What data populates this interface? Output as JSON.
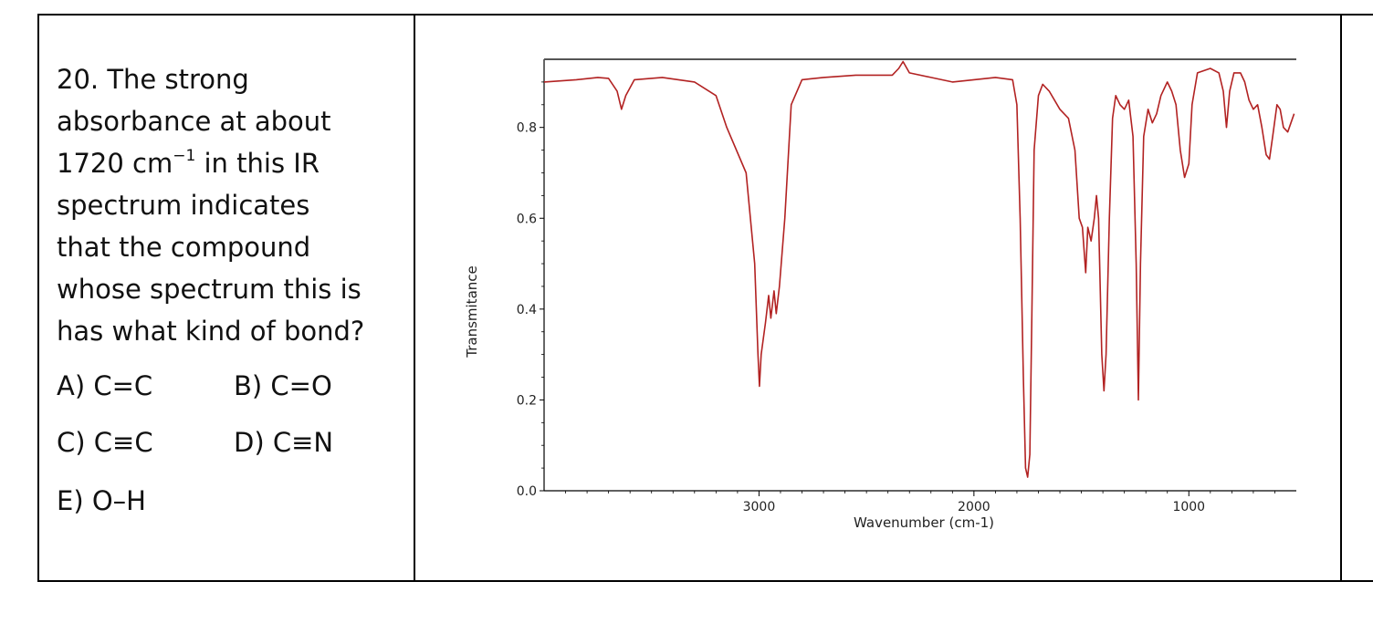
{
  "question": {
    "number": "20.",
    "stem_lines": [
      "20. The strong",
      "absorbance at about",
      "1720 cm",
      "spectrum indicates",
      "that the compound",
      "whose spectrum this is",
      "has what kind of bond?"
    ],
    "unit_superscript": "−1",
    "line3_suffix": " in this IR",
    "options": [
      {
        "label": "A) C=C"
      },
      {
        "label": "B) C=O"
      },
      {
        "label": "C) C≡C"
      },
      {
        "label": "D) C≡N"
      },
      {
        "label": "E) O–H"
      }
    ]
  },
  "chart_data": {
    "type": "line",
    "title": "",
    "xlabel": "Wavenumber (cm-1)",
    "ylabel": "Transmitance",
    "xlim": [
      4000,
      500
    ],
    "ylim": [
      0,
      0.95
    ],
    "x_ticks": [
      3000,
      2000,
      1000
    ],
    "y_ticks": [
      0.0,
      0.2,
      0.4,
      0.6,
      0.8
    ],
    "y_tick_labels": [
      "0.0",
      "0.2",
      "0.4",
      "0.6",
      "0.8"
    ],
    "grid": false,
    "series": [
      {
        "color": "#b22222",
        "points": [
          [
            4000,
            0.9
          ],
          [
            3850,
            0.905
          ],
          [
            3750,
            0.91
          ],
          [
            3700,
            0.908
          ],
          [
            3660,
            0.88
          ],
          [
            3640,
            0.84
          ],
          [
            3620,
            0.87
          ],
          [
            3580,
            0.905
          ],
          [
            3450,
            0.91
          ],
          [
            3300,
            0.9
          ],
          [
            3200,
            0.87
          ],
          [
            3150,
            0.8
          ],
          [
            3060,
            0.7
          ],
          [
            3020,
            0.5
          ],
          [
            3005,
            0.3
          ],
          [
            2998,
            0.23
          ],
          [
            2990,
            0.3
          ],
          [
            2970,
            0.37
          ],
          [
            2955,
            0.43
          ],
          [
            2945,
            0.38
          ],
          [
            2930,
            0.44
          ],
          [
            2920,
            0.39
          ],
          [
            2905,
            0.45
          ],
          [
            2880,
            0.6
          ],
          [
            2850,
            0.85
          ],
          [
            2800,
            0.905
          ],
          [
            2700,
            0.91
          ],
          [
            2550,
            0.915
          ],
          [
            2380,
            0.915
          ],
          [
            2350,
            0.93
          ],
          [
            2330,
            0.945
          ],
          [
            2300,
            0.92
          ],
          [
            2200,
            0.91
          ],
          [
            2100,
            0.9
          ],
          [
            2000,
            0.905
          ],
          [
            1900,
            0.91
          ],
          [
            1820,
            0.905
          ],
          [
            1800,
            0.85
          ],
          [
            1785,
            0.6
          ],
          [
            1770,
            0.25
          ],
          [
            1760,
            0.05
          ],
          [
            1750,
            0.03
          ],
          [
            1740,
            0.08
          ],
          [
            1730,
            0.4
          ],
          [
            1720,
            0.75
          ],
          [
            1700,
            0.87
          ],
          [
            1680,
            0.895
          ],
          [
            1650,
            0.88
          ],
          [
            1600,
            0.84
          ],
          [
            1560,
            0.82
          ],
          [
            1530,
            0.75
          ],
          [
            1510,
            0.6
          ],
          [
            1495,
            0.58
          ],
          [
            1480,
            0.48
          ],
          [
            1470,
            0.58
          ],
          [
            1455,
            0.55
          ],
          [
            1440,
            0.6
          ],
          [
            1430,
            0.65
          ],
          [
            1420,
            0.6
          ],
          [
            1405,
            0.3
          ],
          [
            1395,
            0.22
          ],
          [
            1385,
            0.3
          ],
          [
            1370,
            0.6
          ],
          [
            1355,
            0.82
          ],
          [
            1340,
            0.87
          ],
          [
            1320,
            0.85
          ],
          [
            1300,
            0.84
          ],
          [
            1280,
            0.86
          ],
          [
            1260,
            0.78
          ],
          [
            1245,
            0.5
          ],
          [
            1235,
            0.2
          ],
          [
            1225,
            0.5
          ],
          [
            1210,
            0.78
          ],
          [
            1190,
            0.84
          ],
          [
            1170,
            0.81
          ],
          [
            1150,
            0.83
          ],
          [
            1130,
            0.87
          ],
          [
            1100,
            0.9
          ],
          [
            1080,
            0.88
          ],
          [
            1060,
            0.85
          ],
          [
            1040,
            0.75
          ],
          [
            1020,
            0.69
          ],
          [
            1000,
            0.72
          ],
          [
            985,
            0.85
          ],
          [
            960,
            0.92
          ],
          [
            900,
            0.93
          ],
          [
            860,
            0.92
          ],
          [
            840,
            0.88
          ],
          [
            825,
            0.8
          ],
          [
            810,
            0.88
          ],
          [
            790,
            0.92
          ],
          [
            760,
            0.92
          ],
          [
            740,
            0.9
          ],
          [
            720,
            0.86
          ],
          [
            700,
            0.84
          ],
          [
            680,
            0.85
          ],
          [
            660,
            0.8
          ],
          [
            640,
            0.74
          ],
          [
            625,
            0.73
          ],
          [
            610,
            0.78
          ],
          [
            590,
            0.85
          ],
          [
            575,
            0.84
          ],
          [
            560,
            0.8
          ],
          [
            540,
            0.79
          ],
          [
            525,
            0.81
          ],
          [
            510,
            0.83
          ]
        ]
      }
    ]
  }
}
